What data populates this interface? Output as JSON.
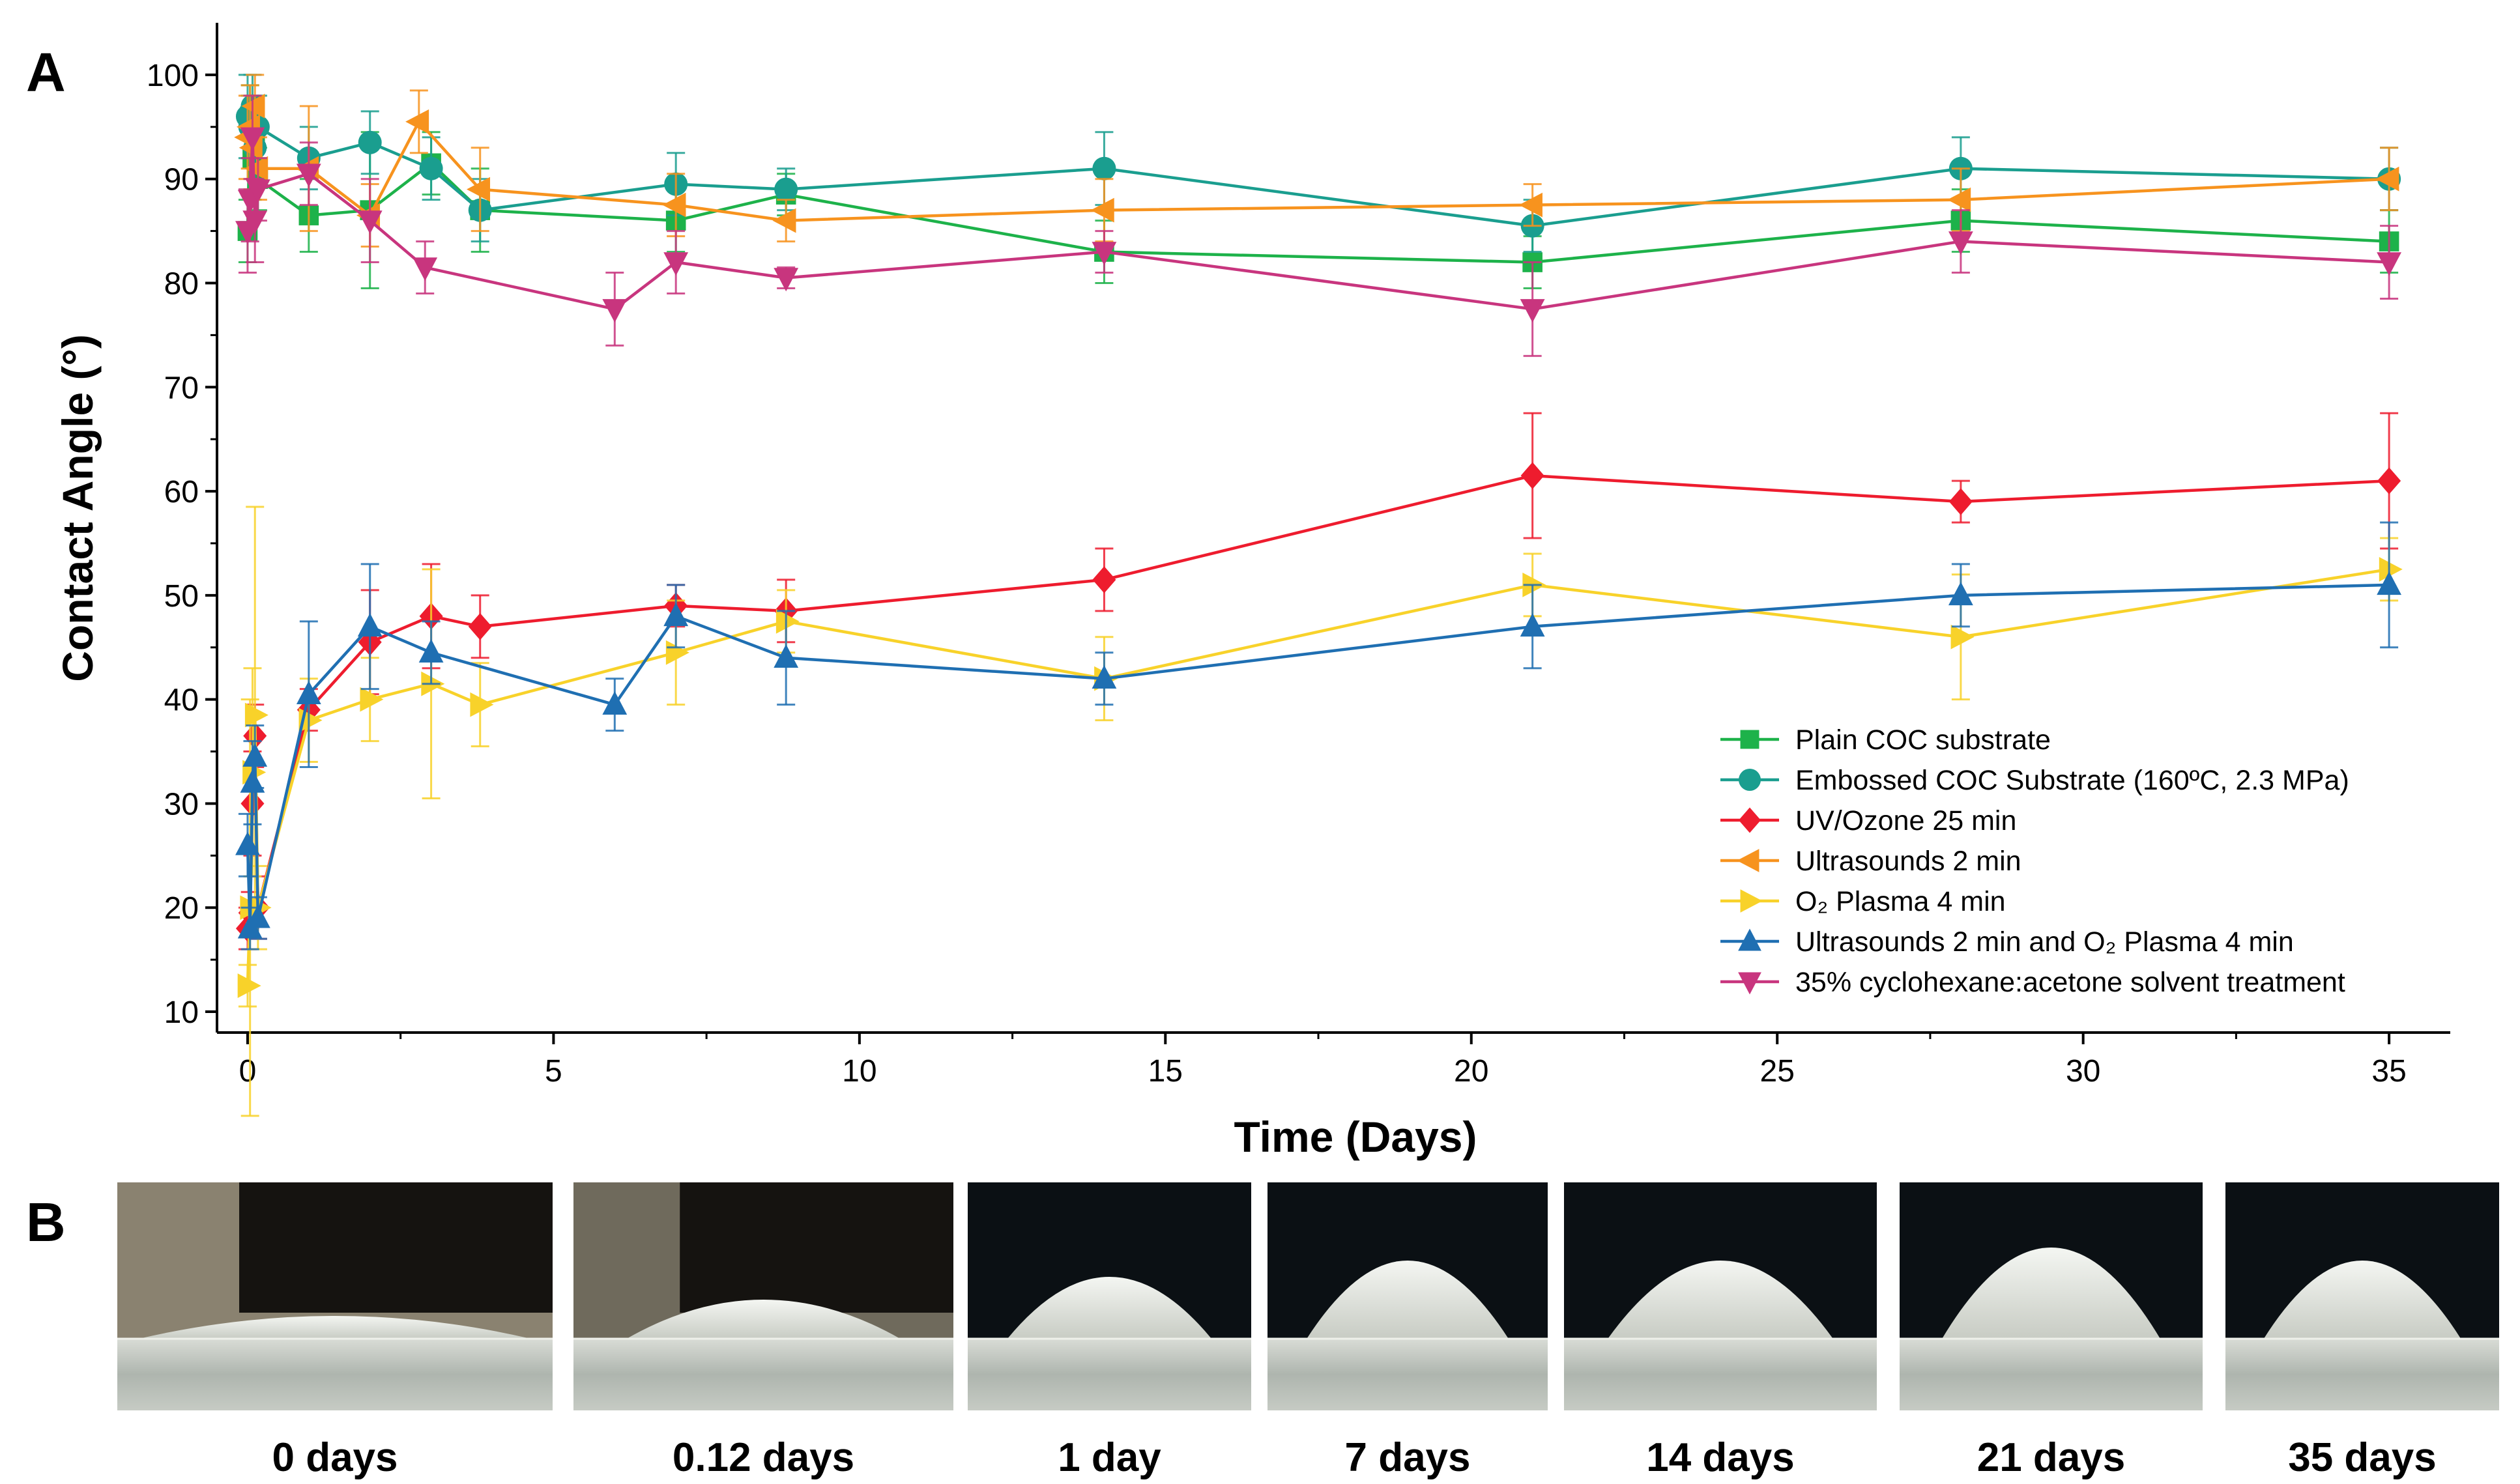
{
  "panel_labels": {
    "a": "A",
    "b": "B"
  },
  "chart_data": {
    "type": "line",
    "xlabel": "Time (Days)",
    "ylabel": "Contact Angle (°)",
    "xlim": [
      -0.5,
      36
    ],
    "ylim": [
      8,
      105
    ],
    "xticks": [
      0,
      5,
      10,
      15,
      20,
      25,
      30,
      35
    ],
    "yticks": [
      10,
      20,
      30,
      40,
      50,
      60,
      70,
      80,
      90,
      100
    ],
    "legend_position": "bottom-right",
    "series": [
      {
        "name": "Plain COC substrate",
        "color": "#1db24a",
        "marker": "square",
        "x": [
          0,
          0.04,
          0.08,
          0.12,
          0.17,
          1,
          2,
          3,
          3.8,
          7,
          8.8,
          14,
          21,
          28,
          35
        ],
        "y": [
          85,
          96,
          92,
          94,
          90,
          86.5,
          87,
          91.5,
          87,
          86,
          88.5,
          83,
          82,
          86,
          84
        ],
        "err": [
          3,
          3,
          4,
          4,
          3,
          3.5,
          7.5,
          3,
          4,
          3,
          2,
          3,
          2.5,
          3,
          3
        ]
      },
      {
        "name": "Embossed COC Substrate (160ºC, 2.3 MPa)",
        "color": "#1a9e8f",
        "marker": "circle",
        "x": [
          0,
          0.04,
          0.08,
          0.12,
          0.17,
          1,
          2,
          3,
          3.8,
          7,
          8.8,
          14,
          21,
          28,
          35
        ],
        "y": [
          96,
          95,
          97,
          93,
          95,
          92,
          93.5,
          91,
          87,
          89.5,
          89,
          91,
          85.5,
          91,
          90
        ],
        "err": [
          4,
          3,
          3,
          3,
          3,
          3,
          3,
          3,
          3,
          3,
          2,
          3.5,
          2.5,
          3,
          3
        ]
      },
      {
        "name": "UV/Ozone 25 min",
        "color": "#ee1c2e",
        "marker": "diamond",
        "x": [
          0,
          0.04,
          0.08,
          0.12,
          0.17,
          1,
          2,
          3,
          3.8,
          7,
          8.8,
          14,
          21,
          28,
          35
        ],
        "y": [
          18,
          19.5,
          30,
          36.5,
          20,
          39,
          45.5,
          48,
          47,
          49,
          48.5,
          51.5,
          61.5,
          59,
          61
        ],
        "err": [
          2,
          2,
          5,
          3,
          3,
          2,
          5,
          5,
          3,
          2,
          3,
          3,
          6,
          2,
          6.5
        ]
      },
      {
        "name": "Ultrasounds 2 min",
        "color": "#f7931e",
        "marker": "triangle-left",
        "x": [
          0,
          0.04,
          0.08,
          0.12,
          0.17,
          1,
          2,
          2.8,
          3.8,
          7,
          8.8,
          14,
          21,
          28,
          35
        ],
        "y": [
          94,
          95,
          93,
          97,
          91,
          91,
          86.5,
          95.5,
          89,
          87.5,
          86,
          87,
          87.5,
          88,
          90
        ],
        "err": [
          4,
          4,
          4,
          3,
          3,
          6,
          3,
          3,
          4,
          3,
          2,
          3,
          2,
          3,
          3
        ]
      },
      {
        "name": "O₂ Plasma 4 min",
        "color": "#f8d22a",
        "marker": "triangle-right",
        "x": [
          0,
          0.04,
          0.08,
          0.12,
          0.17,
          1,
          2,
          3,
          3.8,
          7,
          8.8,
          14,
          21,
          28,
          35
        ],
        "y": [
          12.5,
          20,
          33,
          38.5,
          20,
          38,
          40,
          41.5,
          39.5,
          44.5,
          47.5,
          42,
          51,
          46,
          52.5
        ],
        "err": [
          2,
          20,
          10,
          20,
          4,
          4,
          4,
          11,
          4,
          5,
          3,
          4,
          3,
          6,
          3
        ]
      },
      {
        "name": "Ultrasounds 2 min and O₂ Plasma 4 min",
        "color": "#1f6fb2",
        "marker": "triangle-up",
        "x": [
          0,
          0.04,
          0.08,
          0.12,
          0.17,
          1,
          2,
          3,
          6,
          7,
          8.8,
          14,
          21,
          28,
          35
        ],
        "y": [
          26,
          18,
          32,
          34.5,
          19,
          40.5,
          47,
          44.5,
          39.5,
          48,
          44,
          42,
          47,
          50,
          51
        ],
        "err": [
          3,
          2,
          4,
          3,
          2,
          7,
          6,
          3,
          2.5,
          3,
          4.5,
          2.5,
          4,
          3,
          6
        ]
      },
      {
        "name": "35% cyclohexane:acetone solvent treatment",
        "color": "#c8357e",
        "marker": "triangle-down",
        "x": [
          0,
          0.04,
          0.08,
          0.12,
          0.17,
          1,
          2,
          2.9,
          6,
          7,
          8.8,
          14,
          21,
          28,
          35
        ],
        "y": [
          85,
          88,
          94,
          86,
          89,
          90.5,
          86,
          81.5,
          77.5,
          82,
          80.5,
          83,
          77.5,
          84,
          82
        ],
        "err": [
          4,
          4,
          4,
          4,
          3,
          3,
          4,
          2.5,
          3.5,
          3,
          1,
          2,
          4.5,
          3,
          3.5
        ]
      }
    ]
  },
  "photos": [
    {
      "caption": "0 days",
      "profile": "flat",
      "bg": "#8a8270"
    },
    {
      "caption": "0.12 days",
      "profile": "low",
      "bg": "#6f6a5c"
    },
    {
      "caption": "1 day",
      "profile": "mid-low",
      "bg": "#0b1014"
    },
    {
      "caption": "7 days",
      "profile": "mid",
      "bg": "#0b1014"
    },
    {
      "caption": "14 days",
      "profile": "mid",
      "bg": "#0b1014"
    },
    {
      "caption": "21 days",
      "profile": "high",
      "bg": "#0b1014"
    },
    {
      "caption": "35 days",
      "profile": "mid",
      "bg": "#0b1014"
    }
  ]
}
